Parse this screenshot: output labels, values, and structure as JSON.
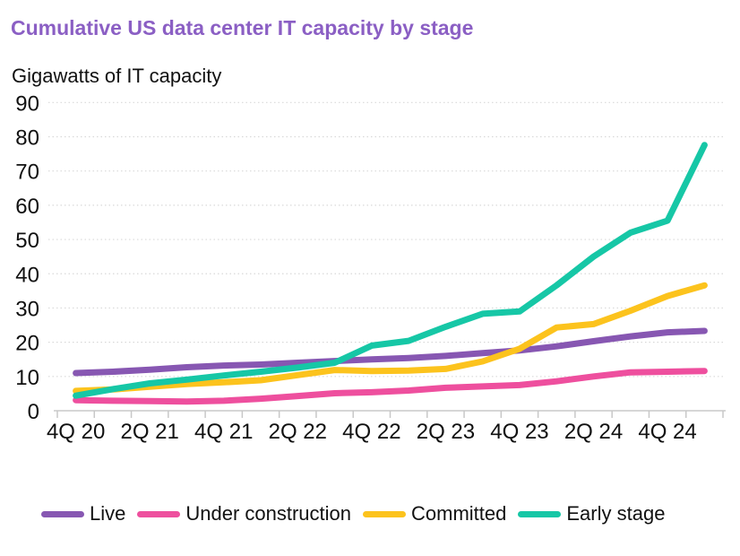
{
  "title": "Cumulative US data center IT capacity by stage",
  "subtitle": "Gigawatts of IT capacity",
  "colors": {
    "title": "#8b5fc4",
    "live": "#8757b2",
    "under_construction": "#ee4f9e",
    "committed": "#fcc31d",
    "early_stage": "#16c7a6",
    "gridline": "#d9d9d9",
    "axis": "#c8c8c8",
    "text": "#111111"
  },
  "chart_data": {
    "type": "line",
    "title": "Cumulative US data center IT capacity by stage",
    "subtitle": "Gigawatts of IT capacity",
    "xlabel": "",
    "ylabel": "Gigawatts of IT capacity",
    "ylim": [
      0,
      90
    ],
    "y_ticks": [
      0,
      10,
      20,
      30,
      40,
      50,
      60,
      70,
      80,
      90
    ],
    "grid": "horizontal-dotted",
    "legend_position": "bottom",
    "x": [
      "4Q 20",
      "1Q 21",
      "2Q 21",
      "3Q 21",
      "4Q 21",
      "1Q 22",
      "2Q 22",
      "3Q 22",
      "4Q 22",
      "1Q 23",
      "2Q 23",
      "3Q 23",
      "4Q 23",
      "1Q 24",
      "2Q 24",
      "3Q 24",
      "4Q 24",
      "1Q 25"
    ],
    "x_axis_labels": [
      "4Q 20",
      "2Q 21",
      "4Q 21",
      "2Q 22",
      "4Q 22",
      "2Q 23",
      "4Q 23",
      "2Q 24",
      "4Q 24"
    ],
    "series": [
      {
        "name": "Live",
        "color": "#8757b2",
        "values": [
          11,
          11.4,
          12,
          12.7,
          13.2,
          13.5,
          14,
          14.5,
          15,
          15.4,
          16,
          16.8,
          17.6,
          18.8,
          20.3,
          21.7,
          22.9,
          23.3
        ]
      },
      {
        "name": "Under construction",
        "color": "#ee4f9e",
        "values": [
          3.1,
          2.9,
          2.8,
          2.7,
          2.9,
          3.5,
          4.3,
          5.1,
          5.4,
          5.9,
          6.7,
          7.1,
          7.5,
          8.6,
          10,
          11.2,
          11.4,
          11.6
        ]
      },
      {
        "name": "Committed",
        "color": "#fcc31d",
        "values": [
          5.8,
          6.2,
          7,
          7.8,
          8.3,
          8.9,
          10.4,
          11.9,
          11.6,
          11.7,
          12.2,
          14.4,
          18.1,
          24.3,
          25.3,
          29.2,
          33.5,
          36.6
        ]
      },
      {
        "name": "Early stage",
        "color": "#16c7a6",
        "values": [
          4.4,
          6.3,
          8,
          9.1,
          10.3,
          11.4,
          12.6,
          14,
          19,
          20.4,
          24.5,
          28.3,
          29,
          36.6,
          45,
          52,
          55.5,
          77.6
        ]
      }
    ]
  }
}
